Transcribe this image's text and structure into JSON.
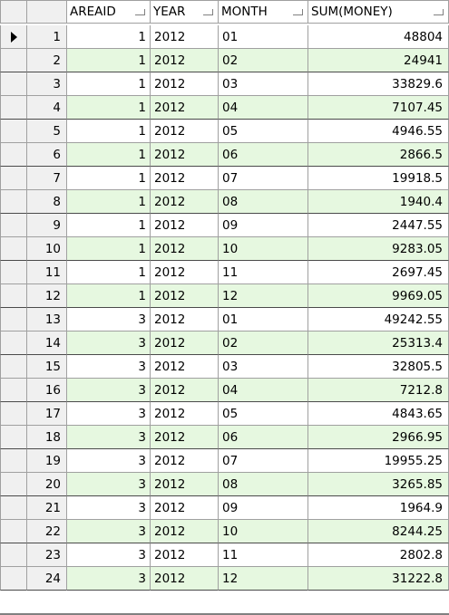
{
  "columns": {
    "areaid": "AREAID",
    "year": "YEAR",
    "month": "MONTH",
    "sum": "SUM(MONEY)"
  },
  "current_row_indicator": "row-pointer-icon",
  "colors": {
    "alt_row": "#e6f8e0",
    "header_bg": "#f0f0f0",
    "grid_line": "#a0a0a0"
  },
  "rows": [
    {
      "n": "1",
      "area": "1",
      "year": "2012",
      "month": "01",
      "sum": "48804"
    },
    {
      "n": "2",
      "area": "1",
      "year": "2012",
      "month": "02",
      "sum": "24941"
    },
    {
      "n": "3",
      "area": "1",
      "year": "2012",
      "month": "03",
      "sum": "33829.6"
    },
    {
      "n": "4",
      "area": "1",
      "year": "2012",
      "month": "04",
      "sum": "7107.45"
    },
    {
      "n": "5",
      "area": "1",
      "year": "2012",
      "month": "05",
      "sum": "4946.55"
    },
    {
      "n": "6",
      "area": "1",
      "year": "2012",
      "month": "06",
      "sum": "2866.5"
    },
    {
      "n": "7",
      "area": "1",
      "year": "2012",
      "month": "07",
      "sum": "19918.5"
    },
    {
      "n": "8",
      "area": "1",
      "year": "2012",
      "month": "08",
      "sum": "1940.4"
    },
    {
      "n": "9",
      "area": "1",
      "year": "2012",
      "month": "09",
      "sum": "2447.55"
    },
    {
      "n": "10",
      "area": "1",
      "year": "2012",
      "month": "10",
      "sum": "9283.05"
    },
    {
      "n": "11",
      "area": "1",
      "year": "2012",
      "month": "11",
      "sum": "2697.45"
    },
    {
      "n": "12",
      "area": "1",
      "year": "2012",
      "month": "12",
      "sum": "9969.05"
    },
    {
      "n": "13",
      "area": "3",
      "year": "2012",
      "month": "01",
      "sum": "49242.55"
    },
    {
      "n": "14",
      "area": "3",
      "year": "2012",
      "month": "02",
      "sum": "25313.4"
    },
    {
      "n": "15",
      "area": "3",
      "year": "2012",
      "month": "03",
      "sum": "32805.5"
    },
    {
      "n": "16",
      "area": "3",
      "year": "2012",
      "month": "04",
      "sum": "7212.8"
    },
    {
      "n": "17",
      "area": "3",
      "year": "2012",
      "month": "05",
      "sum": "4843.65"
    },
    {
      "n": "18",
      "area": "3",
      "year": "2012",
      "month": "06",
      "sum": "2966.95"
    },
    {
      "n": "19",
      "area": "3",
      "year": "2012",
      "month": "07",
      "sum": "19955.25"
    },
    {
      "n": "20",
      "area": "3",
      "year": "2012",
      "month": "08",
      "sum": "3265.85"
    },
    {
      "n": "21",
      "area": "3",
      "year": "2012",
      "month": "09",
      "sum": "1964.9"
    },
    {
      "n": "22",
      "area": "3",
      "year": "2012",
      "month": "10",
      "sum": "8244.25"
    },
    {
      "n": "23",
      "area": "3",
      "year": "2012",
      "month": "11",
      "sum": "2802.8"
    },
    {
      "n": "24",
      "area": "3",
      "year": "2012",
      "month": "12",
      "sum": "31222.8"
    }
  ]
}
